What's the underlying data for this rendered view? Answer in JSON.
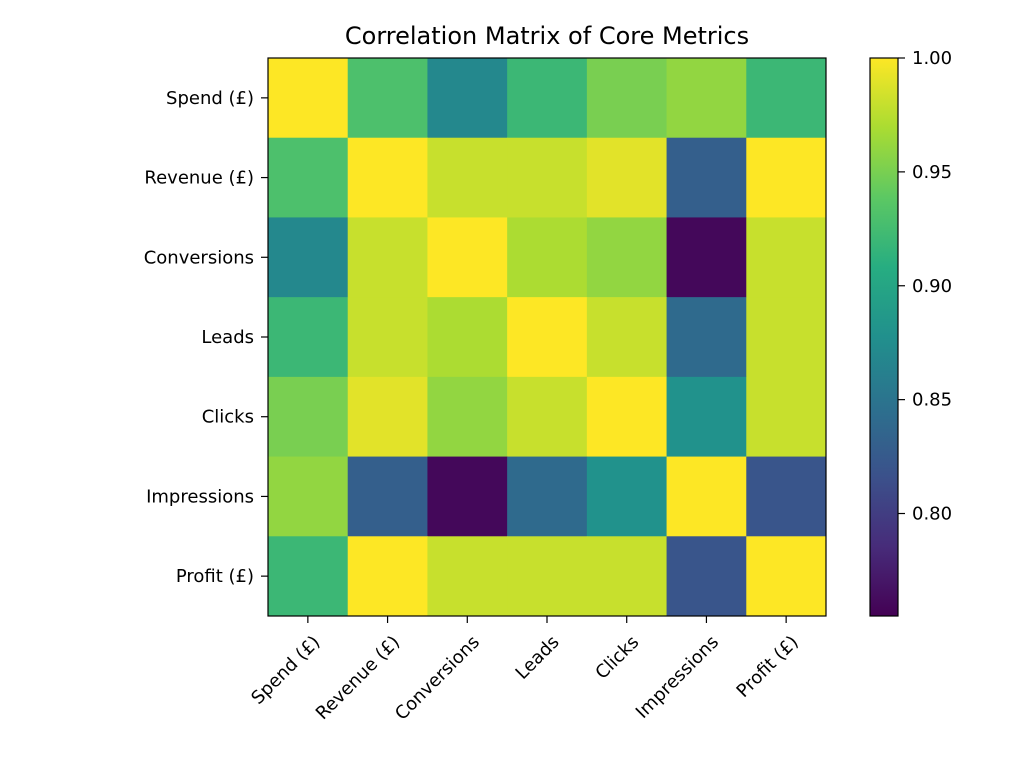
{
  "chart_data": {
    "type": "heatmap",
    "title": "Correlation Matrix of Core Metrics",
    "xlabel": "",
    "ylabel": "",
    "x_categories": [
      "Spend (£)",
      "Revenue (£)",
      "Conversions",
      "Leads",
      "Clicks",
      "Impressions",
      "Profit (£)"
    ],
    "y_categories": [
      "Spend (£)",
      "Revenue (£)",
      "Conversions",
      "Leads",
      "Clicks",
      "Impressions",
      "Profit (£)"
    ],
    "values": [
      [
        1.0,
        0.93,
        0.87,
        0.92,
        0.95,
        0.96,
        0.92
      ],
      [
        0.93,
        1.0,
        0.98,
        0.98,
        0.99,
        0.83,
        1.0
      ],
      [
        0.87,
        0.98,
        1.0,
        0.97,
        0.96,
        0.76,
        0.98
      ],
      [
        0.92,
        0.98,
        0.97,
        1.0,
        0.98,
        0.84,
        0.98
      ],
      [
        0.95,
        0.99,
        0.96,
        0.98,
        1.0,
        0.88,
        0.98
      ],
      [
        0.96,
        0.83,
        0.76,
        0.84,
        0.88,
        1.0,
        0.82
      ],
      [
        0.92,
        1.0,
        0.98,
        0.98,
        0.98,
        0.82,
        1.0
      ]
    ],
    "colormap": "viridis",
    "color_range": [
      0.755,
      1.0
    ],
    "colorbar": {
      "ticks": [
        0.8,
        0.85,
        0.9,
        0.95,
        1.0
      ],
      "tick_labels": [
        "0.80",
        "0.85",
        "0.90",
        "0.95",
        "1.00"
      ],
      "placement": "right"
    },
    "grid": false,
    "legend": "none"
  }
}
